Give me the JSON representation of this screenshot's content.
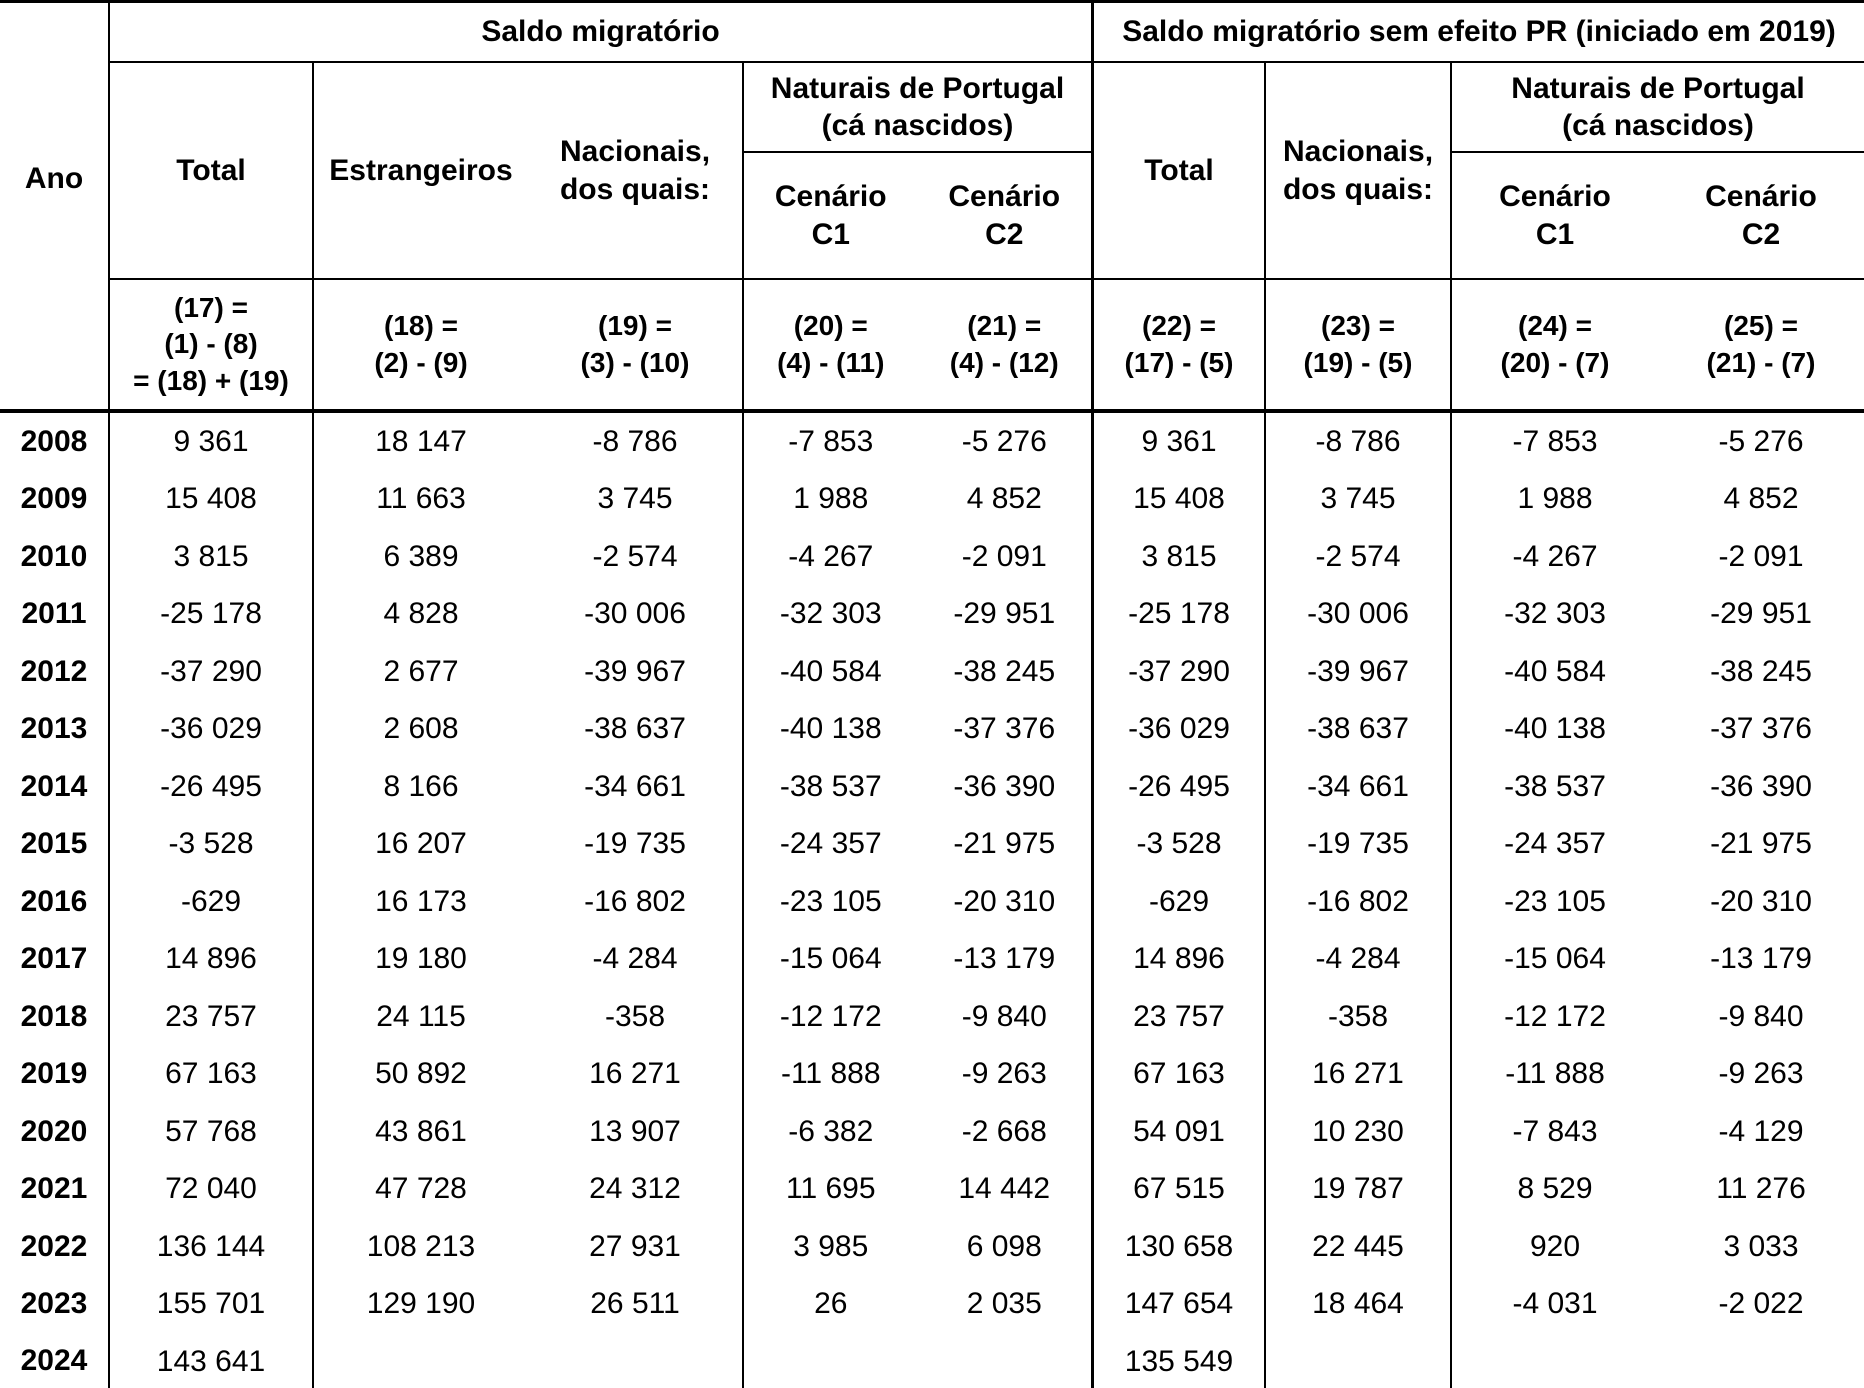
{
  "header": {
    "group1_title": "Saldo migratório",
    "group2_title": "Saldo migratório sem efeito PR (iniciado em 2019)",
    "ano": "Ano",
    "total": "Total",
    "estrangeiros": "Estrangeiros",
    "nacionais": "Nacionais,\ndos quais:",
    "naturais": "Naturais de Portugal\n(cá nascidos)",
    "cenario_c1": "Cenário\nC1",
    "cenario_c2": "Cenário\nC2"
  },
  "formulas": {
    "f17": "(17) =\n(1) - (8)\n= (18) + (19)",
    "f18": "(18) =\n(2) - (9)",
    "f19": "(19) =\n(3) - (10)",
    "f20": "(20) =\n(4) - (11)",
    "f21": "(21) =\n(4) - (12)",
    "f22": "(22) =\n(17) - (5)",
    "f23": "(23) =\n(19) - (5)",
    "f24": "(24) =\n(20) - (7)",
    "f25": "(25) =\n(21) - (7)"
  },
  "rows": [
    {
      "year": "2008",
      "c17": "9 361",
      "c18": "18 147",
      "c19": "-8 786",
      "c20": "-7 853",
      "c21": "-5 276",
      "c22": "9 361",
      "c23": "-8 786",
      "c24": "-7 853",
      "c25": "-5 276"
    },
    {
      "year": "2009",
      "c17": "15 408",
      "c18": "11 663",
      "c19": "3 745",
      "c20": "1 988",
      "c21": "4 852",
      "c22": "15 408",
      "c23": "3 745",
      "c24": "1 988",
      "c25": "4 852"
    },
    {
      "year": "2010",
      "c17": "3 815",
      "c18": "6 389",
      "c19": "-2 574",
      "c20": "-4 267",
      "c21": "-2 091",
      "c22": "3 815",
      "c23": "-2 574",
      "c24": "-4 267",
      "c25": "-2 091"
    },
    {
      "year": "2011",
      "c17": "-25 178",
      "c18": "4 828",
      "c19": "-30 006",
      "c20": "-32 303",
      "c21": "-29 951",
      "c22": "-25 178",
      "c23": "-30 006",
      "c24": "-32 303",
      "c25": "-29 951"
    },
    {
      "year": "2012",
      "c17": "-37 290",
      "c18": "2 677",
      "c19": "-39 967",
      "c20": "-40 584",
      "c21": "-38 245",
      "c22": "-37 290",
      "c23": "-39 967",
      "c24": "-40 584",
      "c25": "-38 245"
    },
    {
      "year": "2013",
      "c17": "-36 029",
      "c18": "2 608",
      "c19": "-38 637",
      "c20": "-40 138",
      "c21": "-37 376",
      "c22": "-36 029",
      "c23": "-38 637",
      "c24": "-40 138",
      "c25": "-37 376"
    },
    {
      "year": "2014",
      "c17": "-26 495",
      "c18": "8 166",
      "c19": "-34 661",
      "c20": "-38 537",
      "c21": "-36 390",
      "c22": "-26 495",
      "c23": "-34 661",
      "c24": "-38 537",
      "c25": "-36 390"
    },
    {
      "year": "2015",
      "c17": "-3 528",
      "c18": "16 207",
      "c19": "-19 735",
      "c20": "-24 357",
      "c21": "-21 975",
      "c22": "-3 528",
      "c23": "-19 735",
      "c24": "-24 357",
      "c25": "-21 975"
    },
    {
      "year": "2016",
      "c17": "-629",
      "c18": "16 173",
      "c19": "-16 802",
      "c20": "-23 105",
      "c21": "-20 310",
      "c22": "-629",
      "c23": "-16 802",
      "c24": "-23 105",
      "c25": "-20 310"
    },
    {
      "year": "2017",
      "c17": "14 896",
      "c18": "19 180",
      "c19": "-4 284",
      "c20": "-15 064",
      "c21": "-13 179",
      "c22": "14 896",
      "c23": "-4 284",
      "c24": "-15 064",
      "c25": "-13 179"
    },
    {
      "year": "2018",
      "c17": "23 757",
      "c18": "24 115",
      "c19": "-358",
      "c20": "-12 172",
      "c21": "-9 840",
      "c22": "23 757",
      "c23": "-358",
      "c24": "-12 172",
      "c25": "-9 840"
    },
    {
      "year": "2019",
      "c17": "67 163",
      "c18": "50 892",
      "c19": "16 271",
      "c20": "-11 888",
      "c21": "-9 263",
      "c22": "67 163",
      "c23": "16 271",
      "c24": "-11 888",
      "c25": "-9 263"
    },
    {
      "year": "2020",
      "c17": "57 768",
      "c18": "43 861",
      "c19": "13 907",
      "c20": "-6 382",
      "c21": "-2 668",
      "c22": "54 091",
      "c23": "10 230",
      "c24": "-7 843",
      "c25": "-4 129"
    },
    {
      "year": "2021",
      "c17": "72 040",
      "c18": "47 728",
      "c19": "24 312",
      "c20": "11 695",
      "c21": "14 442",
      "c22": "67 515",
      "c23": "19 787",
      "c24": "8 529",
      "c25": "11 276"
    },
    {
      "year": "2022",
      "c17": "136 144",
      "c18": "108 213",
      "c19": "27 931",
      "c20": "3 985",
      "c21": "6 098",
      "c22": "130 658",
      "c23": "22 445",
      "c24": "920",
      "c25": "3 033"
    },
    {
      "year": "2023",
      "c17": "155 701",
      "c18": "129 190",
      "c19": "26 511",
      "c20": "26",
      "c21": "2 035",
      "c22": "147 654",
      "c23": "18 464",
      "c24": "-4 031",
      "c25": "-2 022"
    },
    {
      "year": "2024",
      "c17": "143 641",
      "c18": "",
      "c19": "",
      "c20": "",
      "c21": "",
      "c22": "135 549",
      "c23": "",
      "c24": "",
      "c25": ""
    }
  ],
  "chart_data": {
    "type": "table",
    "title": "Saldo migratório / Saldo migratório sem efeito PR (iniciado em 2019)",
    "columns": [
      "Ano",
      "(17) Saldo migratório Total",
      "(18) Estrangeiros",
      "(19) Nacionais, dos quais",
      "(20) Naturais de Portugal Cenário C1",
      "(21) Naturais de Portugal Cenário C2",
      "(22) Total sem efeito PR",
      "(23) Nacionais sem efeito PR",
      "(24) Cenário C1 sem efeito PR",
      "(25) Cenário C2 sem efeito PR"
    ],
    "rows": [
      [
        2008,
        9361,
        18147,
        -8786,
        -7853,
        -5276,
        9361,
        -8786,
        -7853,
        -5276
      ],
      [
        2009,
        15408,
        11663,
        3745,
        1988,
        4852,
        15408,
        3745,
        1988,
        4852
      ],
      [
        2010,
        3815,
        6389,
        -2574,
        -4267,
        -2091,
        3815,
        -2574,
        -4267,
        -2091
      ],
      [
        2011,
        -25178,
        4828,
        -30006,
        -32303,
        -29951,
        -25178,
        -30006,
        -32303,
        -29951
      ],
      [
        2012,
        -37290,
        2677,
        -39967,
        -40584,
        -38245,
        -37290,
        -39967,
        -40584,
        -38245
      ],
      [
        2013,
        -36029,
        2608,
        -38637,
        -40138,
        -37376,
        -36029,
        -38637,
        -40138,
        -37376
      ],
      [
        2014,
        -26495,
        8166,
        -34661,
        -38537,
        -36390,
        -26495,
        -34661,
        -38537,
        -36390
      ],
      [
        2015,
        -3528,
        16207,
        -19735,
        -24357,
        -21975,
        -3528,
        -19735,
        -24357,
        -21975
      ],
      [
        2016,
        -629,
        16173,
        -16802,
        -23105,
        -20310,
        -629,
        -16802,
        -23105,
        -20310
      ],
      [
        2017,
        14896,
        19180,
        -4284,
        -15064,
        -13179,
        14896,
        -4284,
        -15064,
        -13179
      ],
      [
        2018,
        23757,
        24115,
        -358,
        -12172,
        -9840,
        23757,
        -358,
        -12172,
        -9840
      ],
      [
        2019,
        67163,
        50892,
        16271,
        -11888,
        -9263,
        67163,
        16271,
        -11888,
        -9263
      ],
      [
        2020,
        57768,
        43861,
        13907,
        -6382,
        -2668,
        54091,
        10230,
        -7843,
        -4129
      ],
      [
        2021,
        72040,
        47728,
        24312,
        11695,
        14442,
        67515,
        19787,
        8529,
        11276
      ],
      [
        2022,
        136144,
        108213,
        27931,
        3985,
        6098,
        130658,
        22445,
        920,
        3033
      ],
      [
        2023,
        155701,
        129190,
        26511,
        26,
        2035,
        147654,
        18464,
        -4031,
        -2022
      ],
      [
        2024,
        143641,
        null,
        null,
        null,
        null,
        135549,
        null,
        null,
        null
      ]
    ]
  }
}
